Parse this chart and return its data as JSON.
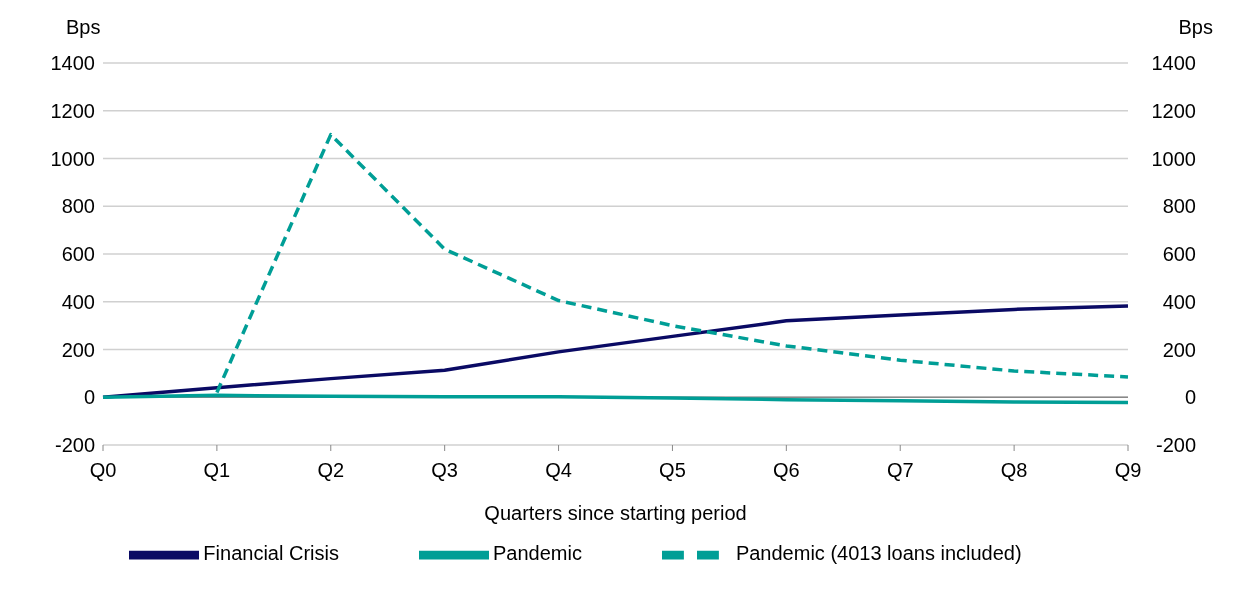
{
  "chart_data": {
    "type": "line",
    "xlabel": "Quarters since starting period",
    "ylabel": "Bps",
    "y2label": "Bps",
    "categories": [
      "Q0",
      "Q1",
      "Q2",
      "Q3",
      "Q4",
      "Q5",
      "Q6",
      "Q7",
      "Q8",
      "Q9"
    ],
    "series": [
      {
        "name": "Financial Crisis",
        "color": "#0a0a64",
        "line_style": "solid",
        "values": [
          0,
          40,
          78,
          113,
          190,
          255,
          320,
          345,
          368,
          382
        ]
      },
      {
        "name": "Pandemic",
        "color": "#009e96",
        "line_style": "solid",
        "values": [
          0,
          8,
          4,
          2,
          2,
          -3,
          -10,
          -15,
          -20,
          -22
        ]
      },
      {
        "name": "Pandemic (4013 loans included)",
        "color": "#009e96",
        "line_style": "dashed",
        "values": [
          null,
          20,
          1100,
          620,
          405,
          300,
          215,
          155,
          110,
          85
        ]
      }
    ],
    "ylim": [
      -200,
      1400
    ],
    "yticks": [
      -200,
      0,
      200,
      400,
      600,
      800,
      1000,
      1200,
      1400
    ],
    "y2lim": [
      -200,
      1400
    ],
    "y2ticks": [
      -200,
      0,
      200,
      400,
      600,
      800,
      1000,
      1200,
      1400
    ],
    "grid": "y",
    "legend": "bottom",
    "marker": "none"
  }
}
